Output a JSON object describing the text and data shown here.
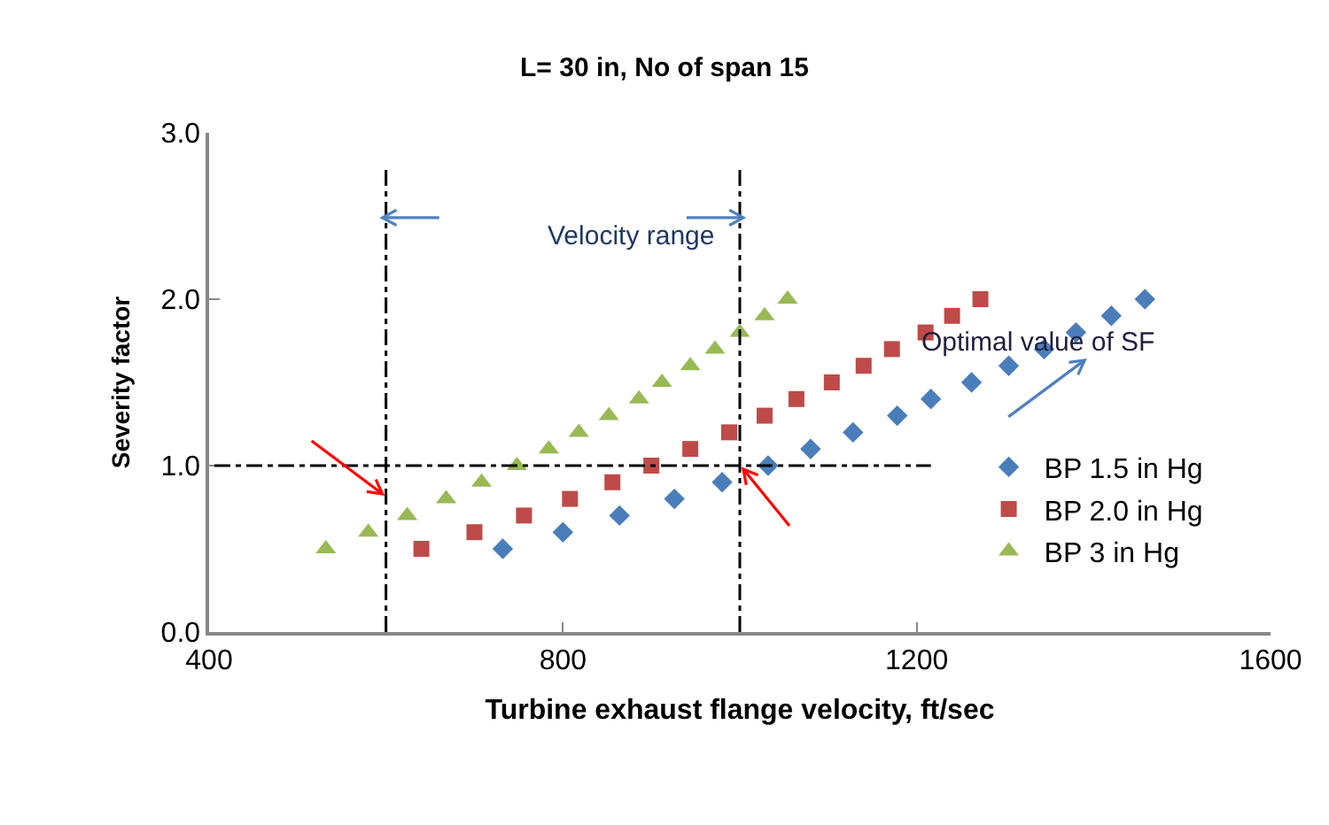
{
  "chart_data": {
    "type": "scatter",
    "title": "L= 30 in, No of span 15",
    "xlabel": "Turbine exhaust flange velocity, ft/sec",
    "ylabel": "Severity factor",
    "xlim": [
      400,
      1600
    ],
    "xticks": [
      400,
      800,
      1200,
      1600
    ],
    "ylim": [
      0,
      3
    ],
    "yticks": [
      {
        "value": 0,
        "label": "0.0"
      },
      {
        "value": 1,
        "label": "1.0"
      },
      {
        "value": 2,
        "label": "2.0"
      },
      {
        "value": 3,
        "label": "3.0"
      }
    ],
    "grid": false,
    "legend": "bottom right",
    "series": [
      {
        "name": "BP 1.5 in Hg",
        "color": "#4a7ebb",
        "marker": "diamond",
        "x": [
          732,
          800,
          864,
          926,
          980,
          1032,
          1080,
          1128,
          1178,
          1216,
          1262,
          1304,
          1344,
          1380,
          1420,
          1458
        ],
        "values": [
          0.5,
          0.6,
          0.7,
          0.8,
          0.9,
          1.0,
          1.1,
          1.2,
          1.3,
          1.4,
          1.5,
          1.6,
          1.7,
          1.8,
          1.9,
          2.0
        ]
      },
      {
        "name": "BP 2.0 in Hg",
        "color": "#be4b48",
        "marker": "square",
        "x": [
          640,
          700,
          756,
          808,
          856,
          900,
          944,
          988,
          1028,
          1064,
          1104,
          1140,
          1172,
          1210,
          1240,
          1272
        ],
        "values": [
          0.5,
          0.6,
          0.7,
          0.8,
          0.9,
          1.0,
          1.1,
          1.2,
          1.3,
          1.4,
          1.5,
          1.6,
          1.7,
          1.8,
          1.9,
          2.0
        ]
      },
      {
        "name": "BP 3 in Hg",
        "color": "#98b954",
        "marker": "triangle",
        "x": [
          532,
          580,
          624,
          668,
          708,
          748,
          784,
          818,
          852,
          886,
          912,
          944,
          972,
          1000,
          1028,
          1054
        ],
        "values": [
          0.5,
          0.6,
          0.7,
          0.8,
          0.9,
          1.0,
          1.1,
          1.2,
          1.3,
          1.4,
          1.5,
          1.6,
          1.7,
          1.8,
          1.9,
          2.0
        ]
      }
    ],
    "ref_lines": [
      {
        "axis": "x",
        "value": 600,
        "color": "#000000",
        "line_style": "dashed"
      },
      {
        "axis": "x",
        "value": 1000,
        "color": "#000000",
        "line_style": "dashed"
      },
      {
        "axis": "y",
        "value": 1.0,
        "color": "#000000",
        "line_style": "dashed"
      }
    ],
    "annotations": [
      "Velocity range",
      "Optimal value of SF"
    ]
  }
}
